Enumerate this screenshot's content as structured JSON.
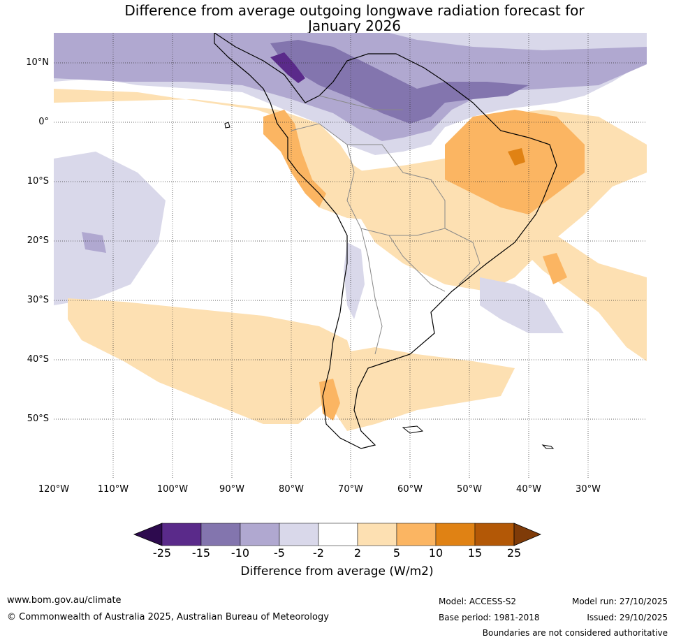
{
  "title": {
    "line1": "Difference from average outgoing longwave radiation forecast for",
    "line2": "January 2026"
  },
  "lat_labels": [
    "10°N",
    "0°",
    "10°S",
    "20°S",
    "30°S",
    "40°S",
    "50°S"
  ],
  "lon_labels": [
    "120°W",
    "110°W",
    "100°W",
    "90°W",
    "80°W",
    "70°W",
    "60°W",
    "50°W",
    "40°W",
    "30°W"
  ],
  "colorbar": {
    "ticks": [
      "-25",
      "-15",
      "-10",
      "-5",
      "-2",
      "2",
      "5",
      "10",
      "15",
      "25"
    ],
    "colors": [
      "#2d0a4e",
      "#5a2a8a",
      "#8375ae",
      "#b0a8d0",
      "#d9d8ea",
      "#ffffff",
      "#fde0b2",
      "#fbb562",
      "#e08214",
      "#b35806",
      "#7f3b08"
    ],
    "title": "Difference from average (W/m2)"
  },
  "footer": {
    "website": "www.bom.gov.au/climate",
    "copyright": "© Commonwealth of Australia 2025, Australian Bureau of Meteorology",
    "model": "Model: ACCESS-S2",
    "base_period": "Base period: 1981-2018",
    "model_run": "Model run: 27/10/2025",
    "issued": "Issued: 29/10/2025",
    "disclaimer": "Boundaries are not considered authoritative"
  }
}
